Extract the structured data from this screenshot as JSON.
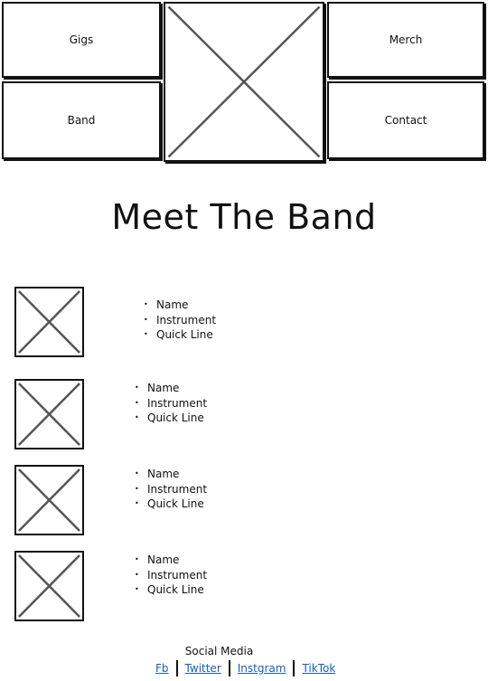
{
  "nav": {
    "gigs": "Gigs",
    "merch": "Merch",
    "band": "Band",
    "contact": "Contact"
  },
  "page_title": "Meet The Band",
  "members": [
    {
      "name": "Name",
      "instrument": "Instrument",
      "quick_line": "Quick Line"
    },
    {
      "name": "Name",
      "instrument": "Instrument",
      "quick_line": "Quick Line"
    },
    {
      "name": "Name",
      "instrument": "Instrument",
      "quick_line": "Quick Line"
    },
    {
      "name": "Name",
      "instrument": "Instrument",
      "quick_line": "Quick Line"
    }
  ],
  "social": {
    "title": "Social Media",
    "links": [
      "Fb",
      "Twitter",
      "Instgram",
      "TikTok"
    ]
  },
  "colors": {
    "link": "#1a5fb4",
    "stroke": "#111111",
    "placeholder_cross": "#555555"
  }
}
